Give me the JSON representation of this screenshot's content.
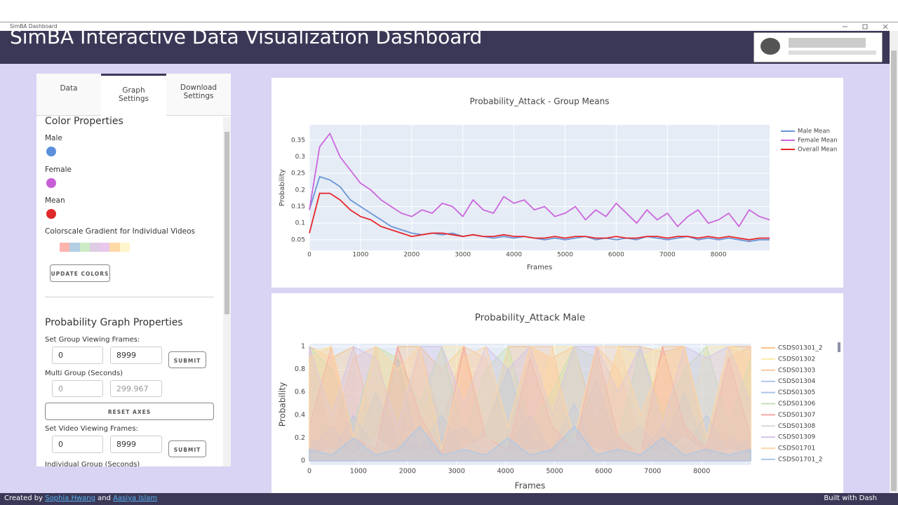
{
  "window": {
    "title": "SimBA Dashboard"
  },
  "header": {
    "title": "SimBA Interactive Data Visualization Dashboard"
  },
  "sidebar": {
    "tabs": [
      "Data",
      "Graph Settings",
      "Download Settings"
    ],
    "color_properties": {
      "heading": "Color Properties",
      "items": [
        {
          "label": "Male",
          "color": "#5b8fd9"
        },
        {
          "label": "Female",
          "color": "#c65fd6"
        },
        {
          "label": "Mean",
          "color": "#e0282a"
        }
      ],
      "colorscale_label": "Colorscale Gradient for Individual Videos",
      "colorscale": [
        "#fbb4ae",
        "#b3cde3",
        "#ccebc5",
        "#decbe4",
        "#e8c8ec",
        "#fed9a6",
        "#fff5cc"
      ],
      "button": "UPDATE COLORS"
    },
    "probability": {
      "heading": "Probability Graph Properties",
      "group_frames": {
        "label": "Set Group Viewing Frames:",
        "inputs": [
          "0",
          "8999"
        ],
        "button": "SUBMIT"
      },
      "multi_group": {
        "label": "Multi Group (Seconds)",
        "inputs": [
          "0",
          "299.967"
        ]
      },
      "reset": "RESET AXES",
      "video_frames": {
        "label": "Set Video Viewing Frames:",
        "inputs": [
          "0",
          "8999"
        ],
        "button": "SUBMIT"
      },
      "individual_label": "Individual Group (Seconds)"
    }
  },
  "chart_data": [
    {
      "type": "line",
      "title": "Probability_Attack - Group Means",
      "x_label": "Frames",
      "y_label": "Probability",
      "x": [
        0,
        200,
        400,
        600,
        800,
        1000,
        1200,
        1400,
        1600,
        1800,
        2000,
        2200,
        2400,
        2600,
        2800,
        3000,
        3200,
        3400,
        3600,
        3800,
        4000,
        4200,
        4400,
        4600,
        4800,
        5000,
        5200,
        5400,
        5600,
        5800,
        6000,
        6200,
        6400,
        6600,
        6800,
        7000,
        7200,
        7400,
        7600,
        7800,
        8000,
        8200,
        8400,
        8600,
        8800,
        8999
      ],
      "series": [
        {
          "name": "Male Mean",
          "color": "#6a96d6",
          "values": [
            0.14,
            0.24,
            0.23,
            0.21,
            0.17,
            0.15,
            0.13,
            0.11,
            0.09,
            0.08,
            0.07,
            0.065,
            0.07,
            0.065,
            0.07,
            0.06,
            0.065,
            0.06,
            0.055,
            0.06,
            0.055,
            0.06,
            0.055,
            0.05,
            0.055,
            0.05,
            0.055,
            0.06,
            0.05,
            0.055,
            0.05,
            0.055,
            0.05,
            0.06,
            0.055,
            0.05,
            0.055,
            0.06,
            0.05,
            0.055,
            0.05,
            0.055,
            0.05,
            0.045,
            0.05,
            0.05
          ]
        },
        {
          "name": "Female Mean",
          "color": "#cc66dd",
          "values": [
            0.14,
            0.33,
            0.37,
            0.3,
            0.26,
            0.22,
            0.2,
            0.17,
            0.15,
            0.13,
            0.12,
            0.14,
            0.13,
            0.16,
            0.15,
            0.12,
            0.17,
            0.14,
            0.13,
            0.18,
            0.16,
            0.17,
            0.14,
            0.15,
            0.12,
            0.13,
            0.15,
            0.11,
            0.14,
            0.12,
            0.16,
            0.13,
            0.1,
            0.14,
            0.11,
            0.13,
            0.09,
            0.12,
            0.14,
            0.1,
            0.11,
            0.13,
            0.09,
            0.14,
            0.12,
            0.11
          ]
        },
        {
          "name": "Overall Mean",
          "color": "#e8262a",
          "values": [
            0.07,
            0.19,
            0.19,
            0.17,
            0.14,
            0.12,
            0.11,
            0.09,
            0.08,
            0.07,
            0.06,
            0.065,
            0.07,
            0.07,
            0.065,
            0.06,
            0.065,
            0.06,
            0.06,
            0.065,
            0.06,
            0.06,
            0.055,
            0.055,
            0.06,
            0.055,
            0.06,
            0.06,
            0.055,
            0.055,
            0.06,
            0.055,
            0.055,
            0.06,
            0.06,
            0.055,
            0.06,
            0.06,
            0.055,
            0.06,
            0.055,
            0.06,
            0.055,
            0.05,
            0.055,
            0.055
          ]
        }
      ],
      "xlim": [
        0,
        8999
      ],
      "ylim": [
        0.018,
        0.396
      ],
      "xticks": [
        0,
        1000,
        2000,
        3000,
        4000,
        5000,
        6000,
        7000,
        8000
      ],
      "yticks": [
        0.05,
        0.1,
        0.15,
        0.2,
        0.25,
        0.3,
        0.35
      ],
      "grid": true,
      "legend": "right"
    },
    {
      "type": "line",
      "title": "Probability_Attack Male",
      "x_label": "Frames",
      "y_label": "Probability",
      "fill": "tozeroy",
      "x": [
        0,
        450,
        900,
        1350,
        1800,
        2250,
        2700,
        3150,
        3600,
        4050,
        4500,
        4950,
        5400,
        5850,
        6300,
        6750,
        7200,
        7650,
        8100,
        8550,
        8999
      ],
      "series": [
        {
          "name": "CSDS01301_2",
          "color": "#f5c28a",
          "values": [
            1,
            0.9,
            1,
            0.2,
            1,
            1,
            0.8,
            1,
            0.1,
            1,
            1,
            0.9,
            1,
            0.3,
            1,
            1,
            0.95,
            1,
            0.2,
            1,
            1
          ]
        },
        {
          "name": "CSDS01302",
          "color": "#fde9a8",
          "values": [
            0.95,
            1,
            0.1,
            1,
            0.9,
            0.2,
            1,
            1,
            0.3,
            1,
            0.1,
            1,
            1,
            0.2,
            1,
            0.9,
            1,
            0.2,
            1,
            1,
            0.95
          ]
        },
        {
          "name": "CSDS01303",
          "color": "#f8c9a0",
          "values": [
            1,
            0.2,
            0.9,
            1,
            0.1,
            1,
            0.3,
            1,
            0.9,
            0.2,
            1,
            1,
            0.1,
            1,
            0.8,
            0.2,
            1,
            1,
            0.1,
            0.9,
            1
          ]
        },
        {
          "name": "CSDS01304",
          "color": "#b3c6e7",
          "values": [
            0.1,
            0.3,
            0.05,
            0.6,
            0.2,
            0.1,
            0.4,
            0.05,
            0.3,
            0.8,
            0.2,
            0.1,
            0.5,
            0.05,
            0.2,
            0.3,
            0.1,
            0.6,
            0.05,
            0.2,
            0.1
          ]
        },
        {
          "name": "CSDS01305",
          "color": "#a9c4e8",
          "values": [
            0.2,
            0.05,
            0.4,
            0.1,
            0.9,
            0.05,
            0.2,
            0.3,
            0.05,
            0.1,
            0.4,
            0.05,
            0.2,
            0.7,
            0.1,
            0.05,
            0.3,
            0.1,
            0.4,
            0.05,
            0.2
          ]
        },
        {
          "name": "CSDS01306",
          "color": "#c5e0b4",
          "values": [
            1,
            0.8,
            0.3,
            1,
            0.9,
            0.5,
            1,
            0.2,
            0.8,
            1,
            0.3,
            0.6,
            1,
            0.9,
            0.2,
            1,
            0.4,
            0.8,
            1,
            0.3,
            0.9
          ]
        },
        {
          "name": "CSDS01307",
          "color": "#f4a6a0",
          "values": [
            0.3,
            1,
            0.2,
            0.1,
            1,
            0.4,
            0.05,
            1,
            0.2,
            0.1,
            0.9,
            0.3,
            0.1,
            1,
            0.2,
            0.05,
            1,
            0.3,
            0.1,
            0.9,
            0.2
          ]
        },
        {
          "name": "CSDS01308",
          "color": "#d9d9d9",
          "values": [
            0.05,
            0.1,
            0.05,
            0.2,
            0.05,
            0.1,
            0.05,
            0.1,
            0.2,
            0.05,
            0.1,
            0.05,
            0.2,
            0.1,
            0.05,
            0.1,
            0.05,
            0.2,
            0.05,
            0.1,
            0.05
          ]
        },
        {
          "name": "CSDS01309",
          "color": "#d5c4e8",
          "values": [
            1,
            0.4,
            1,
            0.9,
            0.3,
            1,
            1,
            0.5,
            1,
            0.8,
            1,
            0.4,
            1,
            1,
            0.6,
            1,
            0.3,
            1,
            0.9,
            1,
            0.5
          ]
        },
        {
          "name": "CSDS01701",
          "color": "#fcd5a5",
          "values": [
            0.9,
            1,
            0.2,
            1,
            0.8,
            1,
            0.1,
            0.9,
            1,
            0.3,
            1,
            0.9,
            0.2,
            1,
            1,
            0.4,
            0.9,
            1,
            0.2,
            1,
            0.9
          ]
        },
        {
          "name": "CSDS01701_2",
          "color": "#aac8ea",
          "values": [
            0.1,
            0.05,
            0.2,
            0.05,
            0.1,
            0.3,
            0.05,
            0.1,
            0.05,
            0.2,
            0.05,
            0.1,
            0.3,
            0.05,
            0.1,
            0.05,
            0.2,
            0.05,
            0.1,
            0.05,
            0.1
          ]
        }
      ],
      "xlim": [
        0,
        8999
      ],
      "ylim": [
        -0.037,
        1.025
      ],
      "xticks": [
        0,
        1000,
        2000,
        3000,
        4000,
        5000,
        6000,
        7000,
        8000
      ],
      "yticks": [
        0,
        0.2,
        0.4,
        0.6,
        0.8,
        1
      ],
      "grid": true,
      "legend": "right"
    }
  ],
  "footer": {
    "prefix": "Created by",
    "author1": "Sophia Hwang",
    "joiner": "and",
    "author2": "Aasiya Islam",
    "right": "Built with Dash"
  }
}
